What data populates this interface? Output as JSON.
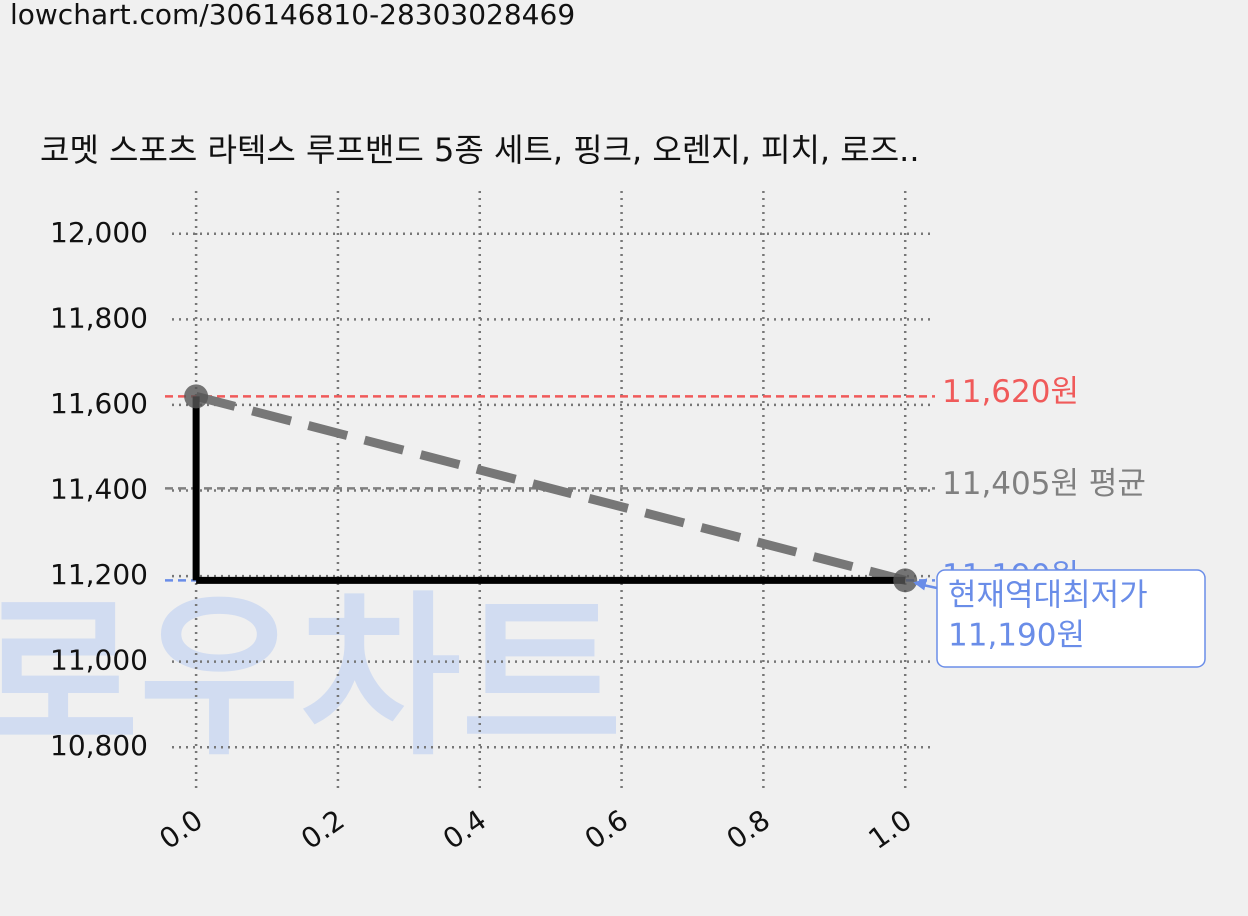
{
  "header": {
    "url": "lowchart.com/306146810-28303028469"
  },
  "watermark": "로우차트",
  "chart_data": {
    "type": "line",
    "title": "코멧 스포츠 라텍스 루프밴드 5종 세트, 핑크, 오렌지, 피치, 로즈..",
    "x": [
      0,
      1
    ],
    "series": [
      {
        "values": [
          11620,
          11190
        ],
        "color": "#000000",
        "trend_color": "#777777",
        "marker_color": "#555555",
        "step": "pre"
      }
    ],
    "xlim": [
      -0.034,
      1.042
    ],
    "xticks": [
      {
        "value": 0,
        "label": "0.0"
      },
      {
        "value": 0.2,
        "label": "0.2"
      },
      {
        "value": 0.4,
        "label": "0.4"
      },
      {
        "value": 0.6,
        "label": "0.6"
      },
      {
        "value": 0.8,
        "label": "0.8"
      },
      {
        "value": 1,
        "label": "1.0"
      }
    ],
    "ylim": [
      10700,
      12100
    ],
    "yticks": [
      {
        "value": 10800,
        "label": "10,800"
      },
      {
        "value": 11000,
        "label": "11,000"
      },
      {
        "value": 11200,
        "label": "11,200"
      },
      {
        "value": 11400,
        "label": "11,400"
      },
      {
        "value": 11600,
        "label": "11,600"
      },
      {
        "value": 11800,
        "label": "11,800"
      },
      {
        "value": 12000,
        "label": "12,000"
      }
    ],
    "grid": true,
    "hlines": [
      {
        "value": 11620,
        "label": "11,620원",
        "color": "#f05a5a"
      },
      {
        "value": 11405,
        "label": "11,405원 평균",
        "color": "#808080"
      },
      {
        "value": 11190,
        "label": "11,190원",
        "color": "#6a8de8"
      }
    ],
    "annotation": {
      "lines": [
        "현재역대최저가",
        "11,190원"
      ],
      "x": 1,
      "y": 11190,
      "color": "#6a8de8"
    }
  }
}
